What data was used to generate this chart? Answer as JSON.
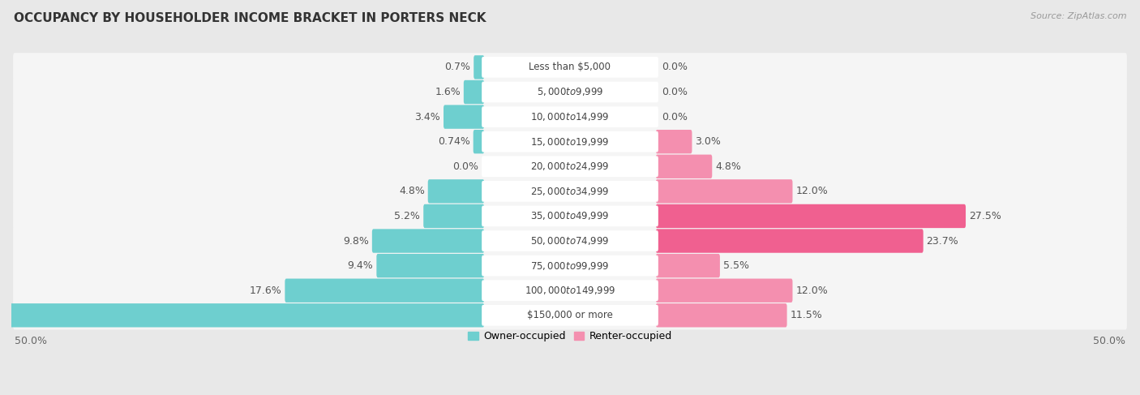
{
  "title": "OCCUPANCY BY HOUSEHOLDER INCOME BRACKET IN PORTERS NECK",
  "source": "Source: ZipAtlas.com",
  "categories": [
    "Less than $5,000",
    "$5,000 to $9,999",
    "$10,000 to $14,999",
    "$15,000 to $19,999",
    "$20,000 to $24,999",
    "$25,000 to $34,999",
    "$35,000 to $49,999",
    "$50,000 to $74,999",
    "$75,000 to $99,999",
    "$100,000 to $149,999",
    "$150,000 or more"
  ],
  "owner_values": [
    0.7,
    1.6,
    3.4,
    0.74,
    0.0,
    4.8,
    5.2,
    9.8,
    9.4,
    17.6,
    46.9
  ],
  "renter_values": [
    0.0,
    0.0,
    0.0,
    3.0,
    4.8,
    12.0,
    27.5,
    23.7,
    5.5,
    12.0,
    11.5
  ],
  "owner_color": "#6ECFCF",
  "renter_color": "#F48FAF",
  "renter_color_bright": "#F06090",
  "owner_label": "Owner-occupied",
  "renter_label": "Renter-occupied",
  "axis_max": 50.0,
  "background_color": "#e8e8e8",
  "row_bg_color": "#f5f5f5",
  "title_fontsize": 11,
  "source_fontsize": 8,
  "label_fontsize": 9,
  "category_fontsize": 8.5,
  "bright_renter_threshold": 20.0
}
